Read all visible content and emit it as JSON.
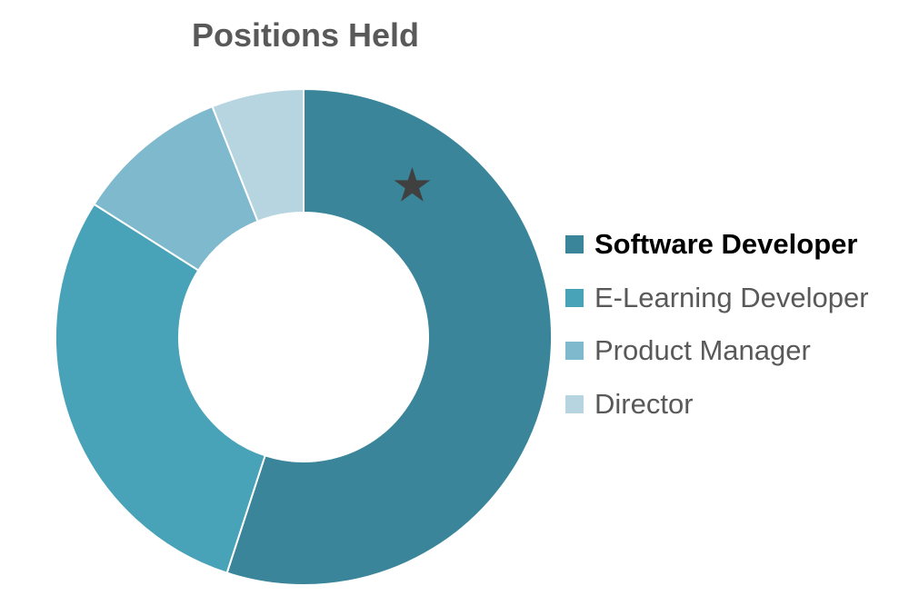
{
  "chart_data": {
    "type": "pie",
    "variant": "donut",
    "title": "Positions Held",
    "categories": [
      "Software Developer",
      "E-Learning Developer",
      "Product Manager",
      "Director"
    ],
    "values": [
      55,
      29,
      10,
      6
    ],
    "colors": [
      "#3A8599",
      "#48A2B8",
      "#7FB9CD",
      "#B7D5E0"
    ],
    "highlighted_category": "Software Developer",
    "marker": {
      "symbol": "★",
      "category": "Software Developer",
      "color": "#404040"
    },
    "legend_position": "right",
    "grid": false
  }
}
